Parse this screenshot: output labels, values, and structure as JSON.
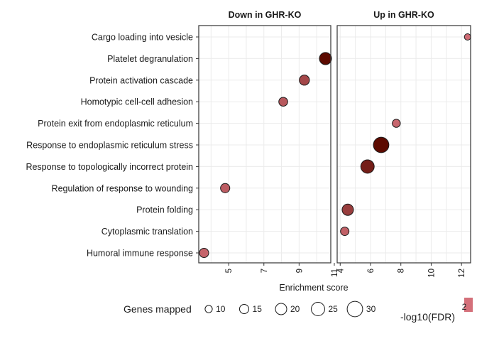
{
  "chart_data": {
    "type": "scatter",
    "title": "",
    "xlabel": "Enrichment score",
    "ylabel": "",
    "grid": true,
    "categories": [
      "Cargo loading into vesicle",
      "Platelet degranulation",
      "Protein activation cascade",
      "Homotypic cell-cell adhesion",
      "Protein exit from endoplasmic reticulum",
      "Response to endoplasmic reticulum stress",
      "Response to topologically incorrect protein",
      "Regulation of response to wounding",
      "Protein folding",
      "Cytoplasmic translation",
      "Humoral immune response"
    ],
    "panels": [
      {
        "name": "Down in GHR-KO",
        "xlim": [
          3.3,
          10.8
        ],
        "xticks": [
          5,
          7,
          9,
          11
        ],
        "xtick_labels": [
          "5",
          "7",
          "9",
          "11"
        ],
        "points": [
          {
            "category": "Platelet degranulation",
            "x": 10.5,
            "genes": 22,
            "neglog10_fdr": 7.0
          },
          {
            "category": "Protein activation cascade",
            "x": 9.3,
            "genes": 17,
            "neglog10_fdr": 4.0
          },
          {
            "category": "Homotypic cell-cell adhesion",
            "x": 8.1,
            "genes": 14,
            "neglog10_fdr": 3.2
          },
          {
            "category": "Regulation of response to wounding",
            "x": 4.8,
            "genes": 15,
            "neglog10_fdr": 3.0
          },
          {
            "category": "Humoral immune response",
            "x": 3.6,
            "genes": 15,
            "neglog10_fdr": 2.6
          }
        ]
      },
      {
        "name": "Up in GHR-KO",
        "xlim": [
          3.8,
          12.6
        ],
        "xticks": [
          4,
          6,
          8,
          10,
          12
        ],
        "xtick_labels": [
          "4",
          "6",
          "8",
          "10",
          "12"
        ],
        "points": [
          {
            "category": "Cargo loading into vesicle",
            "x": 12.4,
            "genes": 8,
            "neglog10_fdr": 2.2
          },
          {
            "category": "Protein exit from endoplasmic reticulum",
            "x": 7.7,
            "genes": 12,
            "neglog10_fdr": 2.5
          },
          {
            "category": "Response to endoplasmic reticulum stress",
            "x": 6.7,
            "genes": 30,
            "neglog10_fdr": 7.0
          },
          {
            "category": "Response to topologically incorrect protein",
            "x": 5.8,
            "genes": 25,
            "neglog10_fdr": 6.0
          },
          {
            "category": "Protein folding",
            "x": 4.5,
            "genes": 20,
            "neglog10_fdr": 4.5
          },
          {
            "category": "Cytoplasmic translation",
            "x": 4.3,
            "genes": 13,
            "neglog10_fdr": 2.8
          }
        ]
      }
    ],
    "legend": {
      "position": "bottom",
      "size_title": "Genes mapped",
      "size_values": [
        10,
        15,
        20,
        25,
        30
      ],
      "color_title": "-log10(FDR)",
      "color_tick_labels": [
        "2"
      ]
    }
  },
  "colors": {
    "background": "#ffffff",
    "grid": "#ebebeb",
    "panel_border": "#333333",
    "point_stroke": "#1a1a1a",
    "color_low": "#d4707a",
    "color_high": "#5c0a00"
  }
}
